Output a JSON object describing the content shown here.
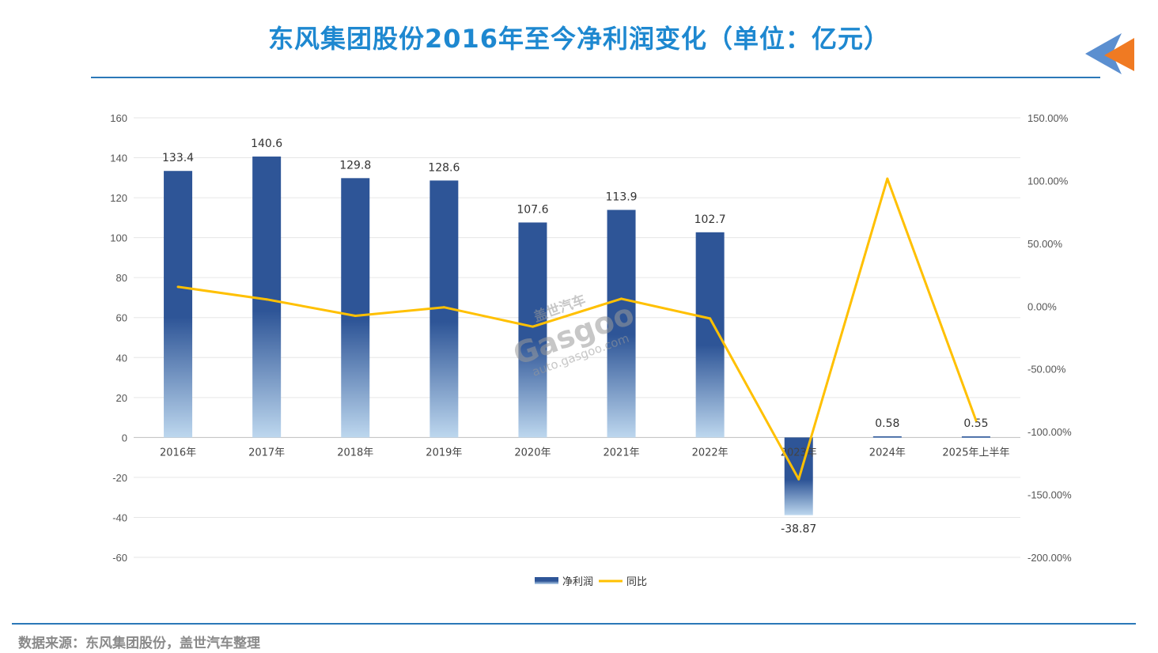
{
  "title": "东风集团股份2016年至今净利润变化（单位：亿元）",
  "source": "数据来源：东风集团股份，盖世汽车整理",
  "watermark": {
    "brand_cn": "盖世汽车",
    "brand": "Gasgoo",
    "url": "auto.gasgoo.com"
  },
  "colors": {
    "title": "#1E88D0",
    "bar_top": "#2E5597",
    "bar_bottom": "#BDD7EE",
    "line": "#FFC000",
    "rule": "#2B78B8"
  },
  "chart_data": {
    "type": "bar",
    "categories": [
      "2016年",
      "2017年",
      "2018年",
      "2019年",
      "2020年",
      "2021年",
      "2022年",
      "2023年",
      "2024年",
      "2025年上半年"
    ],
    "series": [
      {
        "name": "净利润",
        "type": "bar",
        "axis": "left",
        "values": [
          133.4,
          140.6,
          129.8,
          128.6,
          107.6,
          113.9,
          102.7,
          -38.87,
          0.58,
          0.55
        ],
        "labels": [
          "133.4",
          "140.6",
          "129.8",
          "128.6",
          "107.6",
          "113.9",
          "102.7",
          "-38.87",
          "0.58",
          "0.55"
        ]
      },
      {
        "name": "同比",
        "type": "line",
        "axis": "right",
        "values": [
          15.4,
          5.4,
          -7.7,
          -0.9,
          -16.3,
          5.9,
          -9.8,
          -137.8,
          101.5,
          -91.0
        ]
      }
    ],
    "y_left": {
      "ylim": [
        -60,
        160
      ],
      "ticks": [
        160,
        140,
        120,
        100,
        80,
        60,
        40,
        20,
        0,
        -20,
        -40,
        -60
      ],
      "tick_labels": [
        "160",
        "140",
        "120",
        "100",
        "80",
        "60",
        "40",
        "20",
        "0",
        "-20",
        "-40",
        "-60"
      ]
    },
    "y_right": {
      "ylim": [
        -200,
        150
      ],
      "ticks": [
        150,
        100,
        50,
        0,
        -50,
        -100,
        -150,
        -200
      ],
      "tick_labels": [
        "150.00%",
        "100.00%",
        "50.00%",
        "0.00%",
        "-50.00%",
        "-100.00%",
        "-150.00%",
        "-200.00%"
      ]
    },
    "grid": true,
    "legend": {
      "position": "bottom",
      "entries": [
        "净利润",
        "同比"
      ]
    }
  }
}
